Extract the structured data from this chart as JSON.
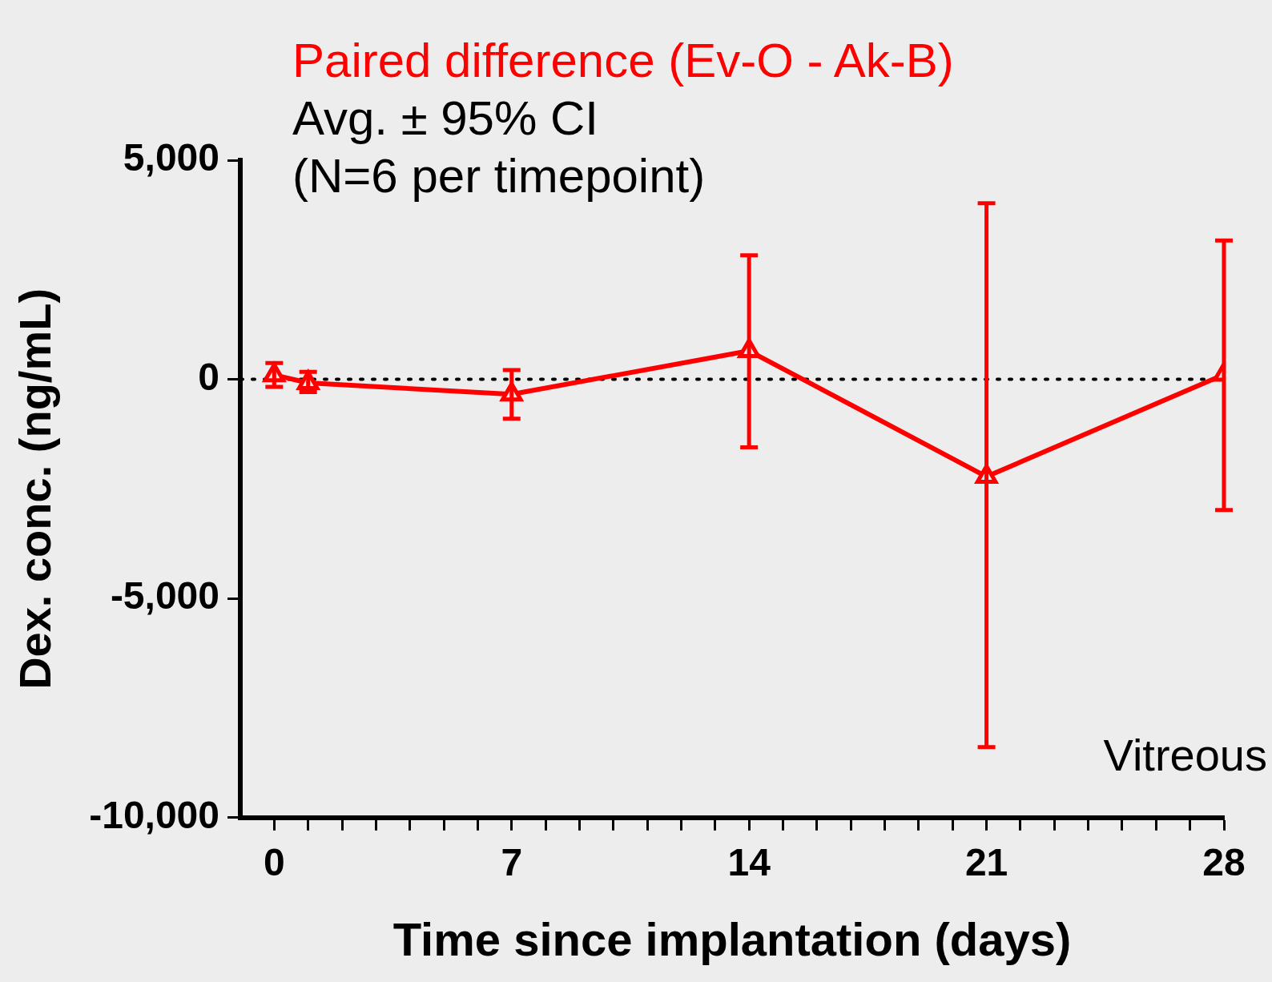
{
  "chart_data": {
    "type": "line",
    "title": "Paired difference (Ev-O - Ak-B)",
    "subtitle": "Avg. ± 95% CI\n(N=6 per timepoint)",
    "xlabel": "Time since implantation (days)",
    "ylabel": "Dex. conc. (ng/mL)",
    "annotations": [
      "Vitreous"
    ],
    "x": [
      0,
      1,
      7,
      14,
      21,
      28
    ],
    "series": [
      {
        "color": "#ff0000",
        "values": [
          100,
          -80,
          -340,
          650,
          -2220,
          110
        ],
        "errors": [
          [
            -170,
            370
          ],
          [
            -290,
            170
          ],
          [
            -900,
            210
          ],
          [
            -1550,
            2830
          ],
          [
            -8390,
            4020
          ],
          [
            -2980,
            3170
          ]
        ]
      }
    ],
    "xlim": [
      -1,
      28
    ],
    "xticks": [
      0,
      {
        "value": 1,
        "label": null
      },
      {
        "value": 2,
        "label": null
      },
      {
        "value": 3,
        "label": null
      },
      {
        "value": 4,
        "label": null
      },
      {
        "value": 5,
        "label": null
      },
      {
        "value": 6,
        "label": null
      },
      7,
      {
        "value": 8,
        "label": null
      },
      {
        "value": 9,
        "label": null
      },
      {
        "value": 10,
        "label": null
      },
      {
        "value": 11,
        "label": null
      },
      {
        "value": 12,
        "label": null
      },
      {
        "value": 13,
        "label": null
      },
      14,
      {
        "value": 15,
        "label": null
      },
      {
        "value": 16,
        "label": null
      },
      {
        "value": 17,
        "label": null
      },
      {
        "value": 18,
        "label": null
      },
      {
        "value": 19,
        "label": null
      },
      {
        "value": 20,
        "label": null
      },
      21,
      {
        "value": 22,
        "label": null
      },
      {
        "value": 23,
        "label": null
      },
      {
        "value": 24,
        "label": null
      },
      {
        "value": 25,
        "label": null
      },
      {
        "value": 26,
        "label": null
      },
      {
        "value": 27,
        "label": null
      },
      28
    ],
    "ylim": [
      -10000,
      5000
    ],
    "yticks": [
      {
        "value": -10000,
        "label": "-10,000"
      },
      {
        "value": -5000,
        "label": "-5,000"
      },
      {
        "value": 0,
        "label": "0"
      },
      {
        "value": 5000,
        "label": "5,000"
      }
    ],
    "ref_lines": [
      {
        "axis": "y",
        "value": 0,
        "color": "#000000",
        "line_style": "dotted"
      }
    ],
    "grid": false,
    "legend": false,
    "marker": "triangle",
    "line_style": "solid"
  }
}
